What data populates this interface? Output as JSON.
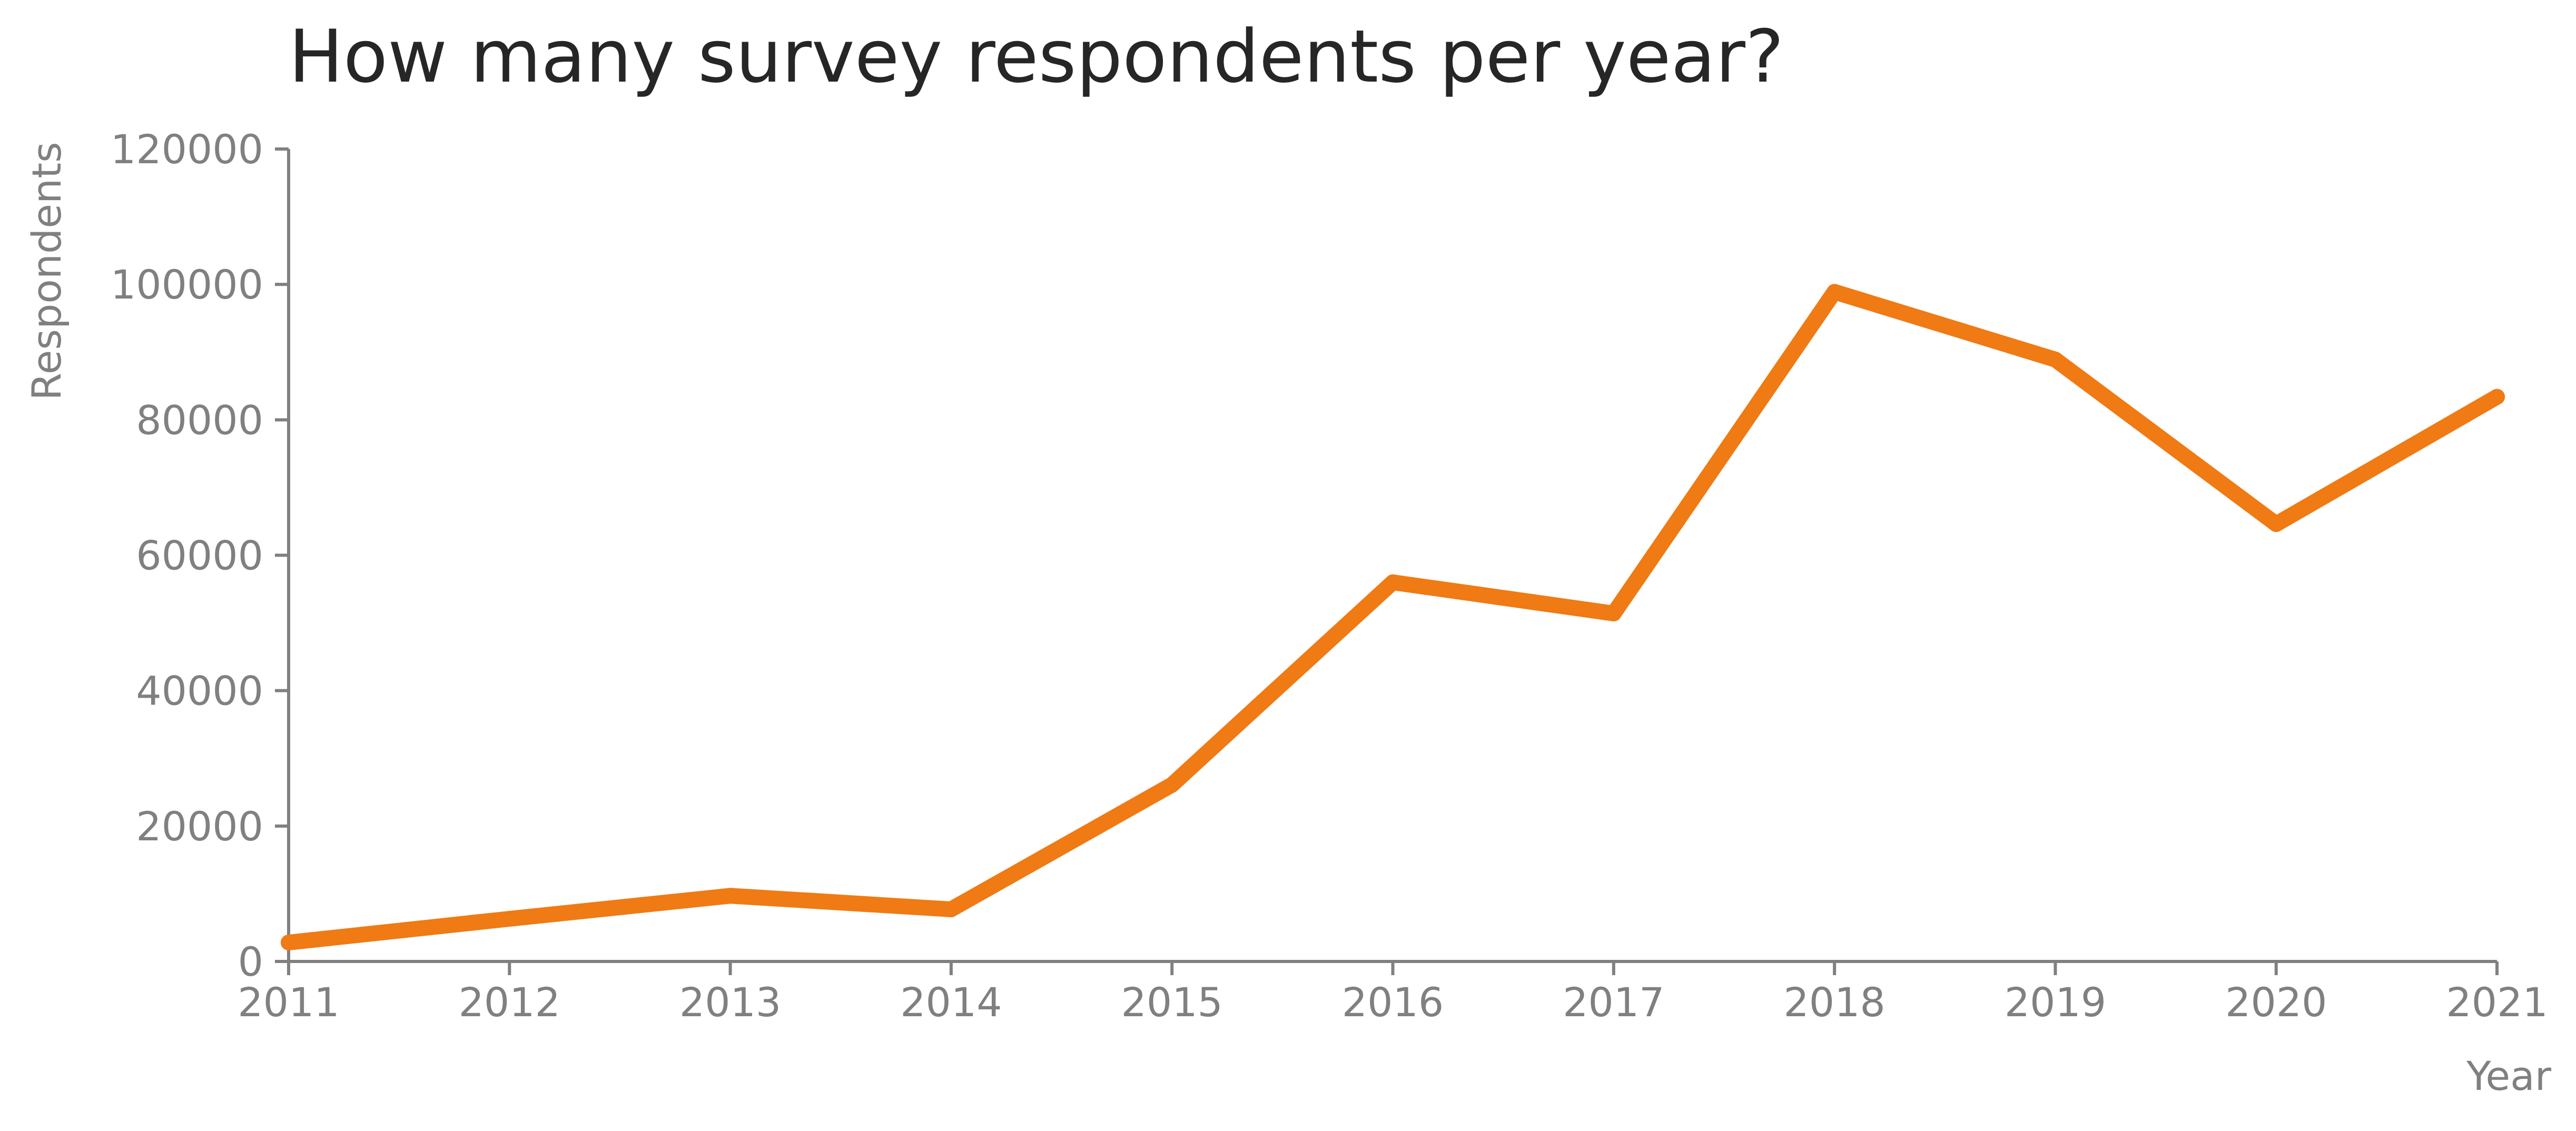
{
  "chart_data": {
    "type": "line",
    "title": "How many survey respondents per year?",
    "xlabel": "Year",
    "ylabel": "Respondents",
    "x": [
      2011,
      2012,
      2013,
      2014,
      2015,
      2016,
      2017,
      2018,
      2019,
      2020,
      2021
    ],
    "series": [
      {
        "values": [
          2800,
          6300,
          9700,
          7700,
          26100,
          56000,
          51400,
          98900,
          88900,
          64600,
          83400
        ],
        "color": "#f07a13"
      }
    ],
    "xlim": [
      2011,
      2021
    ],
    "ylim": [
      0,
      120000
    ],
    "x_ticks": [
      "2011",
      "2012",
      "2013",
      "2014",
      "2015",
      "2016",
      "2017",
      "2018",
      "2019",
      "2020",
      "2021"
    ],
    "y_ticks": [
      "0",
      "20000",
      "40000",
      "60000",
      "80000",
      "100000",
      "120000"
    ],
    "grid": false,
    "legend": "none"
  }
}
